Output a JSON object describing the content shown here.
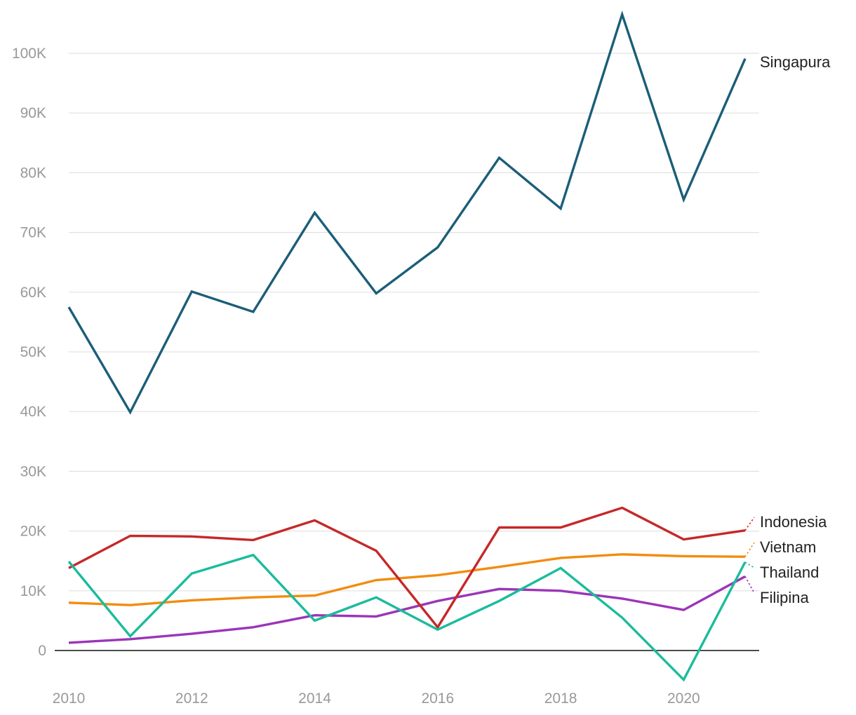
{
  "chart_data": {
    "type": "line",
    "title": "",
    "xlabel": "",
    "ylabel": "",
    "x": [
      2010,
      2011,
      2012,
      2013,
      2014,
      2015,
      2016,
      2017,
      2018,
      2019,
      2020,
      2021
    ],
    "xlim": [
      2010,
      2021.2
    ],
    "ylim": [
      -5000,
      107000
    ],
    "x_ticks": [
      2010,
      2012,
      2014,
      2016,
      2018,
      2020
    ],
    "x_tick_labels": [
      "2010",
      "2012",
      "2014",
      "2016",
      "2018",
      "2020"
    ],
    "y_ticks": [
      0,
      10000,
      20000,
      30000,
      40000,
      50000,
      60000,
      70000,
      80000,
      90000,
      100000
    ],
    "y_tick_labels": [
      "0",
      "10K",
      "20K",
      "30K",
      "40K",
      "50K",
      "60K",
      "70K",
      "80K",
      "90K",
      "100K"
    ],
    "grid": true,
    "legend": "direct labels at right end of lines",
    "series": [
      {
        "name": "Singapura",
        "color": "#1b5e78",
        "values": [
          57500,
          39900,
          60100,
          56700,
          73300,
          59800,
          67500,
          82500,
          74000,
          106500,
          75500,
          99100
        ]
      },
      {
        "name": "Indonesia",
        "color": "#c62828",
        "values": [
          13800,
          19200,
          19100,
          18500,
          21800,
          16700,
          3900,
          20600,
          20600,
          23900,
          18600,
          20100
        ]
      },
      {
        "name": "Vietnam",
        "color": "#f28c0f",
        "values": [
          8000,
          7600,
          8400,
          8900,
          9200,
          11800,
          12600,
          14000,
          15500,
          16100,
          15800,
          15700
        ]
      },
      {
        "name": "Thailand",
        "color": "#1abc9c",
        "values": [
          14900,
          2400,
          12900,
          16000,
          5000,
          8900,
          3500,
          8300,
          13800,
          5500,
          -4900,
          14800
        ]
      },
      {
        "name": "Filipina",
        "color": "#9b35b8",
        "values": [
          1300,
          1900,
          2800,
          3900,
          5900,
          5700,
          8300,
          10300,
          10000,
          8700,
          6800,
          12400
        ]
      }
    ]
  }
}
